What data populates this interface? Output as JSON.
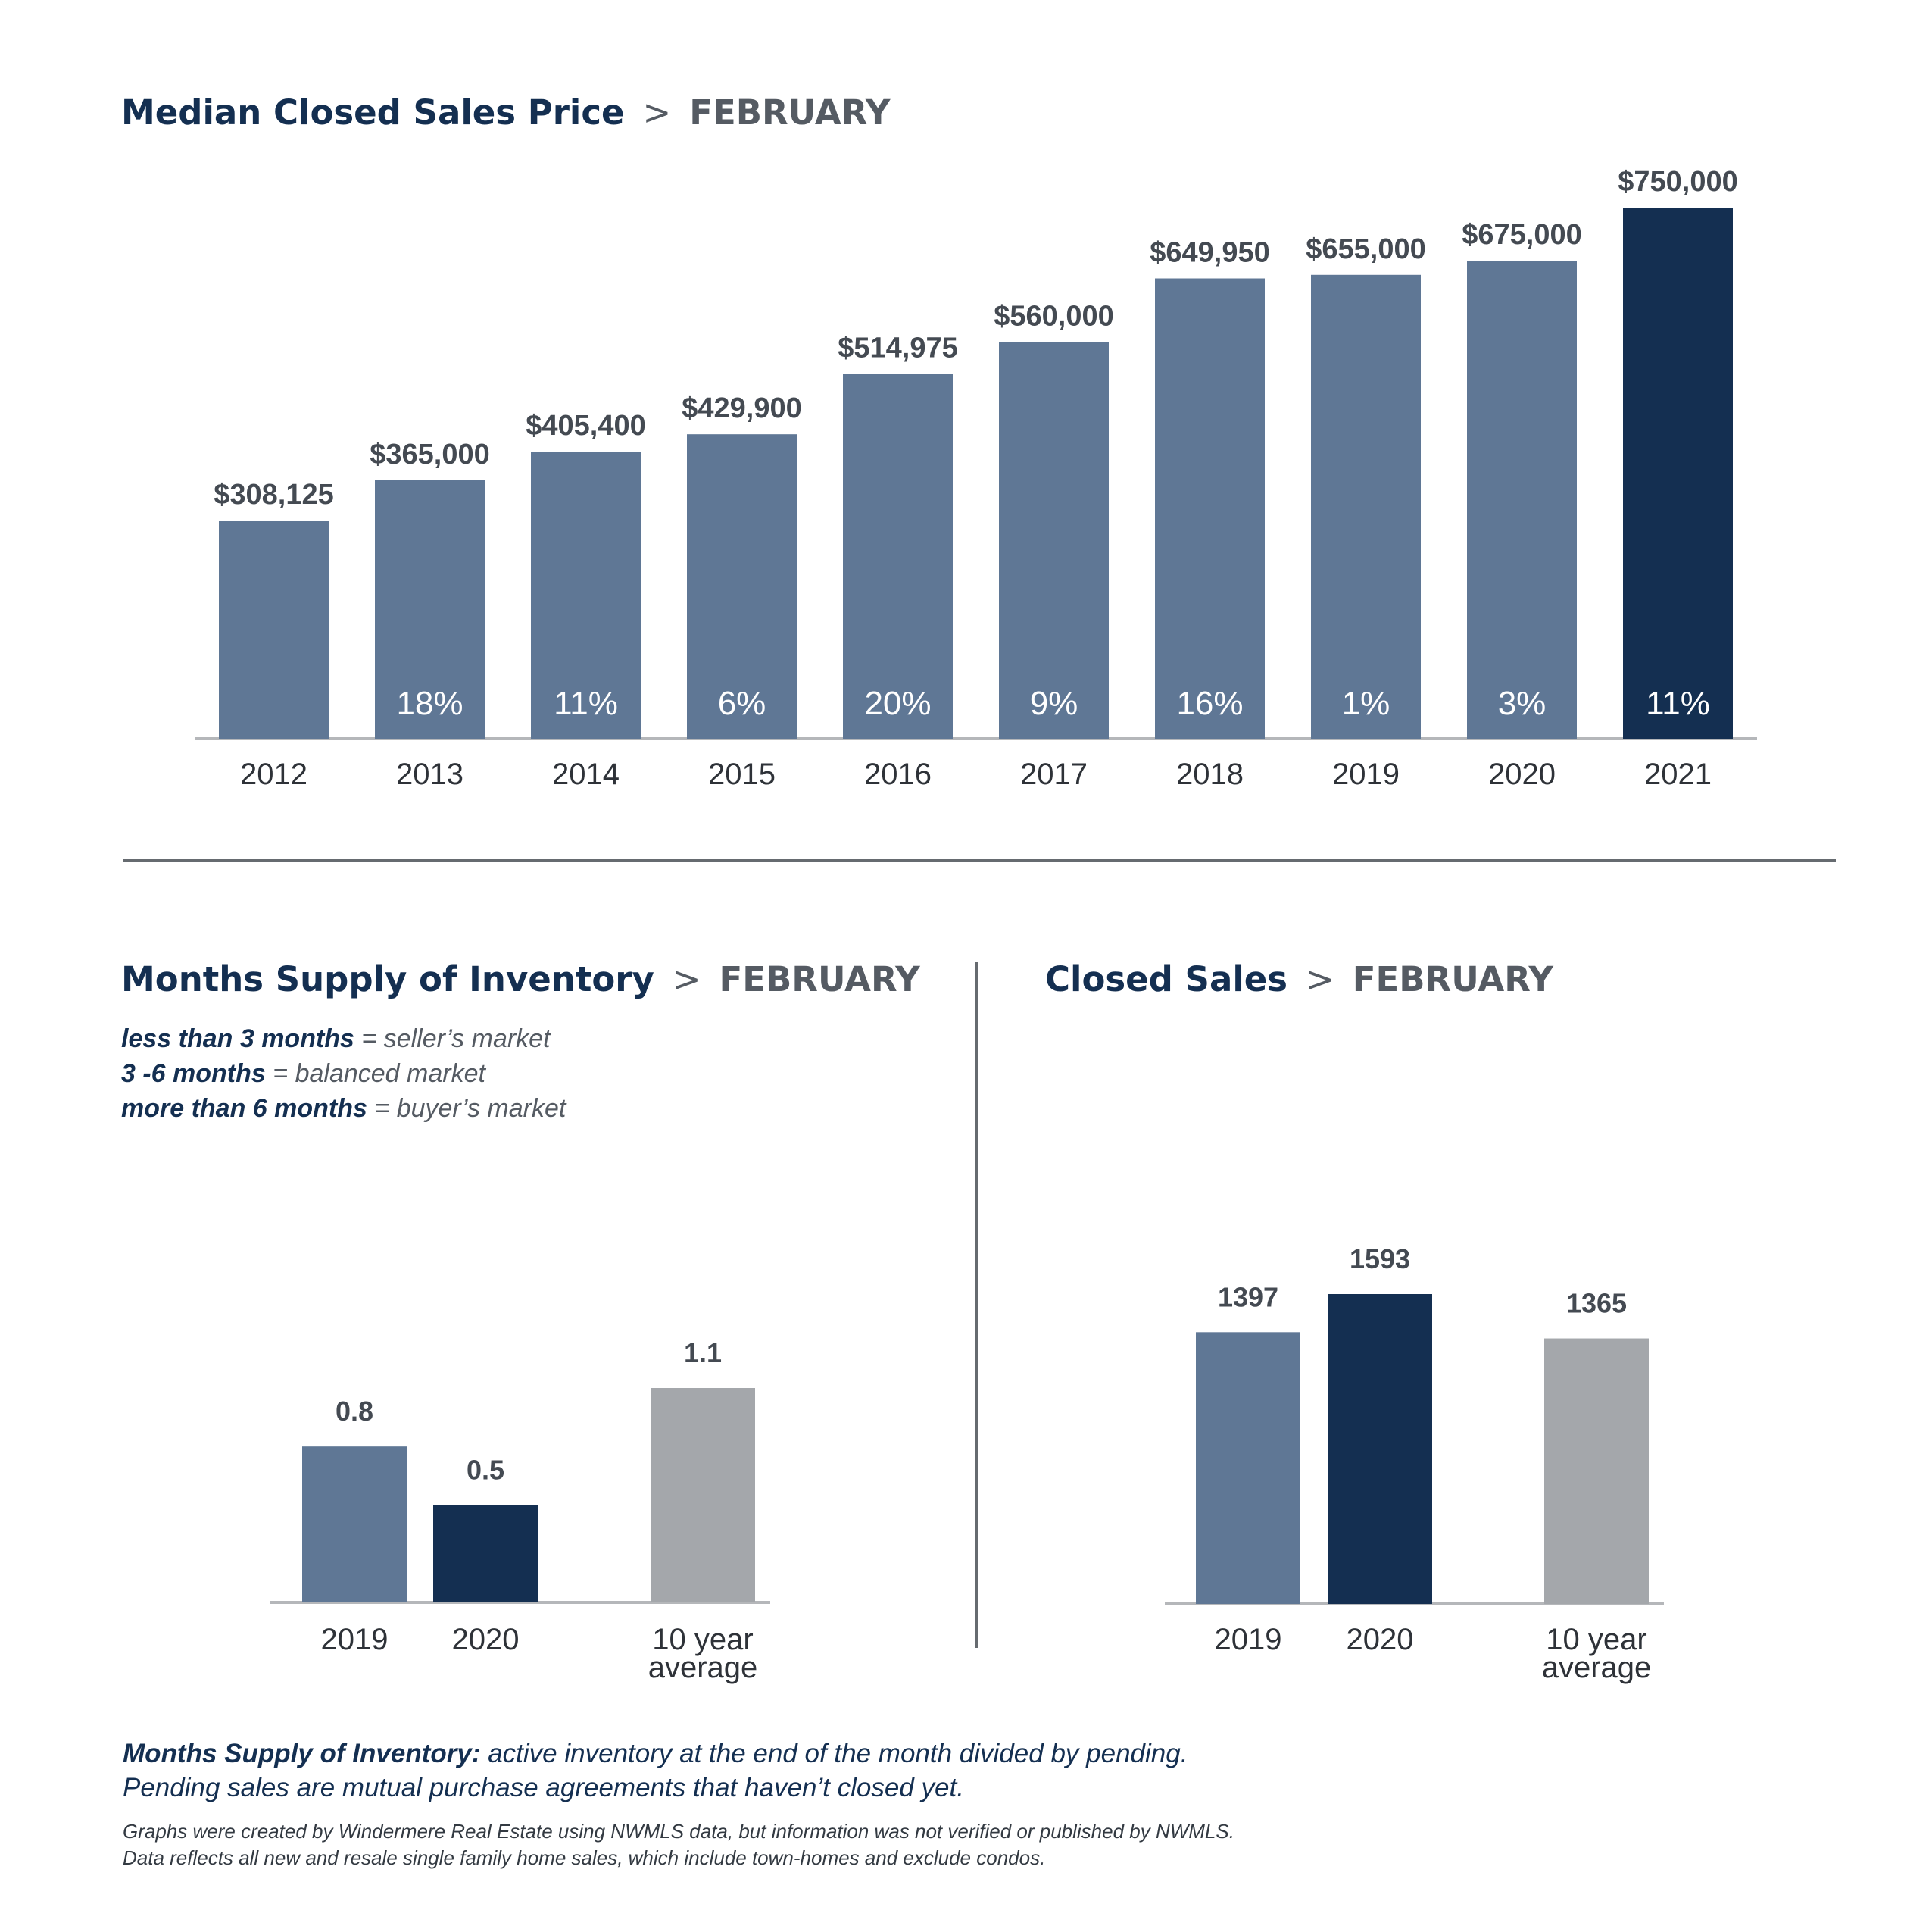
{
  "colors": {
    "navy": "#142f51",
    "slate": "#5f7795",
    "gray": "#a4a7ab",
    "axis": "#b5b7ba",
    "text": "#444a52"
  },
  "sections": {
    "price": {
      "title": "Median Closed Sales Price",
      "separator": ">",
      "month": "FEBRUARY"
    },
    "inventory": {
      "title": "Months Supply of Inventory",
      "separator": ">",
      "month": "FEBRUARY",
      "legend": [
        {
          "key": "less than 3 months",
          "value": "= seller’s market"
        },
        {
          "key": "3 -6 months",
          "value": "= balanced market"
        },
        {
          "key": "more than 6 months",
          "value": "= buyer’s market"
        }
      ]
    },
    "closed": {
      "title": "Closed Sales",
      "separator": ">",
      "month": "FEBRUARY"
    }
  },
  "chart_data": [
    {
      "type": "bar",
      "categories": [
        "2012",
        "2013",
        "2014",
        "2015",
        "2016",
        "2017",
        "2018",
        "2019",
        "2020",
        "2021"
      ],
      "values": [
        308125,
        365000,
        405400,
        429900,
        514975,
        560000,
        649950,
        655000,
        675000,
        750000
      ],
      "value_labels": [
        "$308,125",
        "$365,000",
        "$405,400",
        "$429,900",
        "$514,975",
        "$560,000",
        "$649,950",
        "$655,000",
        "$675,000",
        "$750,000"
      ],
      "percent_labels": [
        "",
        "18%",
        "11%",
        "6%",
        "20%",
        "9%",
        "16%",
        "1%",
        "3%",
        "11%"
      ],
      "bar_colors": [
        "slate",
        "slate",
        "slate",
        "slate",
        "slate",
        "slate",
        "slate",
        "slate",
        "slate",
        "navy"
      ],
      "ylim": [
        0,
        750000
      ]
    },
    {
      "type": "bar",
      "categories": [
        [
          "2019"
        ],
        [
          "2020"
        ],
        [
          "10 year",
          "average"
        ]
      ],
      "values": [
        0.8,
        0.5,
        1.1
      ],
      "value_labels": [
        "0.8",
        "0.5",
        "1.1"
      ],
      "bar_colors": [
        "slate",
        "navy",
        "gray"
      ],
      "ylim": [
        0,
        1.1
      ]
    },
    {
      "type": "bar",
      "categories": [
        [
          "2019"
        ],
        [
          "2020"
        ],
        [
          "10 year",
          "average"
        ]
      ],
      "values": [
        1397,
        1593,
        1365
      ],
      "value_labels": [
        "1397",
        "1593",
        "1365"
      ],
      "bar_colors": [
        "slate",
        "navy",
        "gray"
      ],
      "ylim": [
        0,
        1593
      ]
    }
  ],
  "footnote": {
    "term": "Months Supply of Inventory:",
    "definition": " active inventory at the end of the month divided by pending.",
    "line2": "Pending sales are mutual purchase agreements that haven’t closed yet.",
    "source1": "Graphs were created by Windermere Real Estate using NWMLS data, but information was not verified or published by NWMLS.",
    "source2": "Data reflects all new and resale single family home sales, which include town-homes and exclude condos."
  }
}
